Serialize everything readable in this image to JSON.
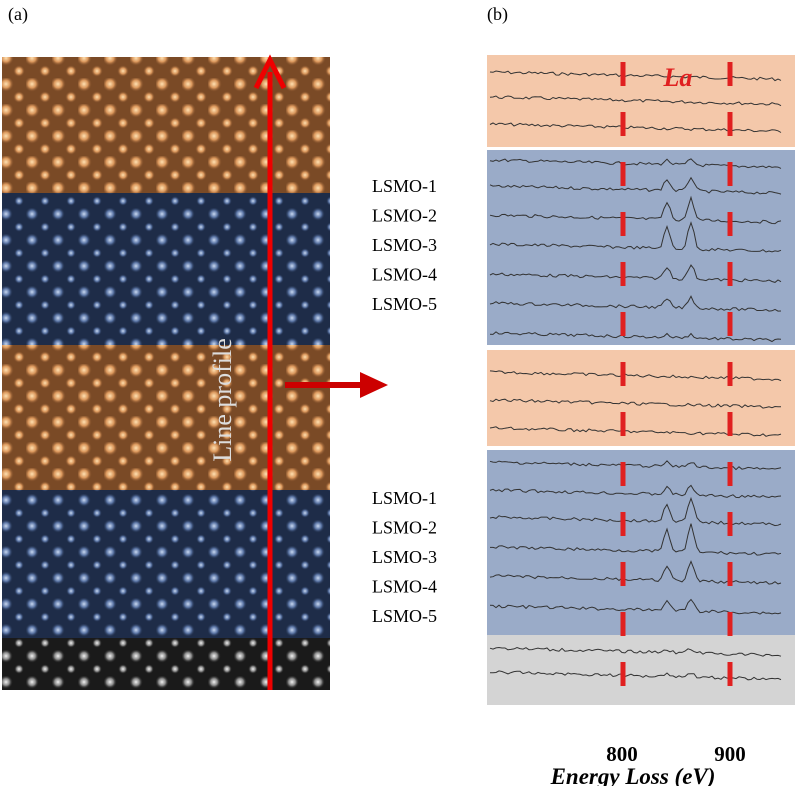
{
  "panel_a": {
    "label": "(a)",
    "line_profile": "Line profile"
  },
  "panel_b": {
    "label": "(b)",
    "element": "La",
    "groups": [
      {
        "labels": [
          "LSMO-1",
          "LSMO-2",
          "LSMO-3",
          "LSMO-4",
          "LSMO-5"
        ]
      },
      {
        "labels": [
          "LSMO-1",
          "LSMO-2",
          "LSMO-3",
          "LSMO-4",
          "LSMO-5"
        ]
      }
    ],
    "ticks": [
      "800",
      "900"
    ],
    "x_axis_label": "Energy Loss (eV)"
  }
}
